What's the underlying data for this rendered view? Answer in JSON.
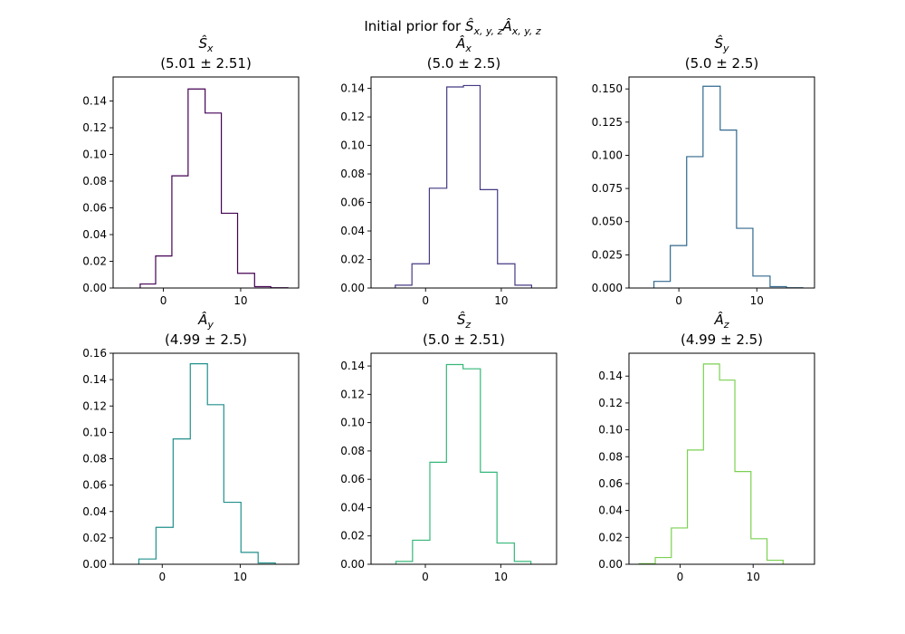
{
  "figure": {
    "suptitle_prefix": "Initial prior for ",
    "suptitle_math": "Ŝ",
    "suptitle_sub1": "x, y, z",
    "suptitle_math2": "Â",
    "suptitle_sub2": "x, y, z"
  },
  "chart_data": [
    {
      "type": "bar",
      "histtype": "step",
      "title_symbol": "Ŝ",
      "title_sub": "x",
      "title": "(5.01 ± 2.51)",
      "color": "#440154",
      "xlim": [
        -6.5,
        17.5
      ],
      "ylim": [
        0,
        0.158
      ],
      "xticks": [
        0,
        10
      ],
      "yticks": [
        0.0,
        0.02,
        0.04,
        0.06,
        0.08,
        0.1,
        0.12,
        0.14
      ],
      "ytick_labels": [
        "0.00",
        "0.02",
        "0.04",
        "0.06",
        "0.08",
        "0.10",
        "0.12",
        "0.14"
      ],
      "bin_edges": [
        -3.0,
        -1.0,
        1.1,
        3.2,
        5.4,
        7.5,
        9.6,
        11.8,
        13.9,
        16.1
      ],
      "values": [
        0.003,
        0.024,
        0.084,
        0.149,
        0.131,
        0.056,
        0.011,
        0.001,
        0.0002
      ]
    },
    {
      "type": "bar",
      "histtype": "step",
      "title_symbol": "Â",
      "title_sub": "x",
      "title": "(5.0 ± 2.5)",
      "color": "#443a83",
      "xlim": [
        -7.2,
        17.3
      ],
      "ylim": [
        0,
        0.148
      ],
      "xticks": [
        0,
        10
      ],
      "yticks": [
        0.0,
        0.02,
        0.04,
        0.06,
        0.08,
        0.1,
        0.12,
        0.14
      ],
      "ytick_labels": [
        "0.00",
        "0.02",
        "0.04",
        "0.06",
        "0.08",
        "0.10",
        "0.12",
        "0.14"
      ],
      "bin_edges": [
        -4.0,
        -1.8,
        0.5,
        2.8,
        5.0,
        7.2,
        9.5,
        11.8,
        14.0
      ],
      "values": [
        0.002,
        0.017,
        0.07,
        0.141,
        0.142,
        0.069,
        0.017,
        0.002
      ]
    },
    {
      "type": "bar",
      "histtype": "step",
      "title_symbol": "Ŝ",
      "title_sub": "y",
      "title": "(5.0 ± 2.5)",
      "color": "#31688e",
      "xlim": [
        -6.4,
        17.4
      ],
      "ylim": [
        0,
        0.159
      ],
      "xticks": [
        0,
        10
      ],
      "yticks": [
        0.0,
        0.025,
        0.05,
        0.075,
        0.1,
        0.125,
        0.15
      ],
      "ytick_labels": [
        "0.000",
        "0.025",
        "0.050",
        "0.075",
        "0.100",
        "0.125",
        "0.150"
      ],
      "bin_edges": [
        -3.2,
        -1.1,
        1.0,
        3.1,
        5.3,
        7.4,
        9.5,
        11.7,
        13.8,
        15.9
      ],
      "values": [
        0.005,
        0.032,
        0.099,
        0.152,
        0.119,
        0.045,
        0.009,
        0.001,
        0.0002
      ]
    },
    {
      "type": "bar",
      "histtype": "step",
      "title_symbol": "Â",
      "title_sub": "y",
      "title": "(4.99 ± 2.5)",
      "color": "#21908c",
      "xlim": [
        -6.3,
        17.5
      ],
      "ylim": [
        0,
        0.16
      ],
      "xticks": [
        0,
        10
      ],
      "yticks": [
        0.0,
        0.02,
        0.04,
        0.06,
        0.08,
        0.1,
        0.12,
        0.14,
        0.16
      ],
      "ytick_labels": [
        "0.00",
        "0.02",
        "0.04",
        "0.06",
        "0.08",
        "0.10",
        "0.12",
        "0.14",
        "0.16"
      ],
      "bin_edges": [
        -3.0,
        -0.8,
        1.4,
        3.6,
        5.8,
        7.9,
        10.1,
        12.3,
        14.5
      ],
      "values": [
        0.004,
        0.028,
        0.095,
        0.152,
        0.121,
        0.047,
        0.009,
        0.001
      ]
    },
    {
      "type": "bar",
      "histtype": "step",
      "title_symbol": "Ŝ",
      "title_sub": "z",
      "title": "(5.0 ± 2.51)",
      "color": "#35b779",
      "xlim": [
        -7.2,
        17.4
      ],
      "ylim": [
        0,
        0.149
      ],
      "xticks": [
        0,
        10
      ],
      "yticks": [
        0.0,
        0.02,
        0.04,
        0.06,
        0.08,
        0.1,
        0.12,
        0.14
      ],
      "ytick_labels": [
        "0.00",
        "0.02",
        "0.04",
        "0.06",
        "0.08",
        "0.10",
        "0.12",
        "0.14"
      ],
      "bin_edges": [
        -3.9,
        -1.7,
        0.6,
        2.8,
        5.0,
        7.3,
        9.5,
        11.8,
        14.0
      ],
      "values": [
        0.002,
        0.017,
        0.072,
        0.141,
        0.138,
        0.065,
        0.015,
        0.002
      ]
    },
    {
      "type": "bar",
      "histtype": "step",
      "title_symbol": "Â",
      "title_sub": "z",
      "title": "(4.99 ± 2.5)",
      "color": "#7ad151",
      "xlim": [
        -7.0,
        18.4
      ],
      "ylim": [
        0,
        0.157
      ],
      "xticks": [
        0,
        10
      ],
      "yticks": [
        0.0,
        0.02,
        0.04,
        0.06,
        0.08,
        0.1,
        0.12,
        0.14
      ],
      "ytick_labels": [
        "0.00",
        "0.02",
        "0.04",
        "0.06",
        "0.08",
        "0.10",
        "0.12",
        "0.14"
      ],
      "bin_edges": [
        -5.6,
        -3.4,
        -1.2,
        1.0,
        3.2,
        5.4,
        7.5,
        9.7,
        11.9,
        14.1
      ],
      "values": [
        0.0004,
        0.005,
        0.027,
        0.085,
        0.149,
        0.137,
        0.069,
        0.019,
        0.003
      ]
    }
  ]
}
